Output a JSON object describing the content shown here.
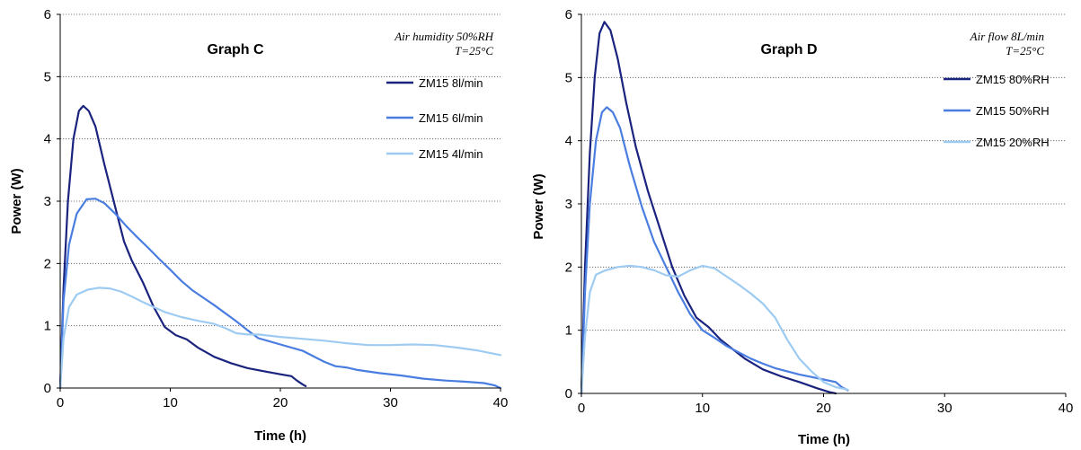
{
  "chart_data": [
    {
      "type": "line",
      "title": "Graph C",
      "xlabel": "Time (h)",
      "ylabel": "Power (W)",
      "xlim": [
        0,
        40
      ],
      "ylim": [
        0,
        6
      ],
      "xticks": [
        0,
        10,
        20,
        30,
        40
      ],
      "yticks": [
        0,
        1,
        2,
        3,
        4,
        5,
        6
      ],
      "grid": "horizontal dotted",
      "legend": "right",
      "annotations": [
        "Air humidity 50%RH",
        "T=25°C"
      ],
      "series": [
        {
          "name": "ZM15 8l/min",
          "color": "#1a237e",
          "points": [
            [
              0,
              0
            ],
            [
              0.3,
              1.6
            ],
            [
              0.7,
              3.0
            ],
            [
              1.2,
              4.0
            ],
            [
              1.7,
              4.45
            ],
            [
              2.1,
              4.53
            ],
            [
              2.6,
              4.45
            ],
            [
              3.2,
              4.2
            ],
            [
              4.0,
              3.6
            ],
            [
              5,
              2.9
            ],
            [
              5.8,
              2.35
            ],
            [
              6.5,
              2.05
            ],
            [
              7.5,
              1.7
            ],
            [
              8.5,
              1.3
            ],
            [
              9.5,
              0.98
            ],
            [
              10.5,
              0.85
            ],
            [
              11.5,
              0.78
            ],
            [
              12.5,
              0.65
            ],
            [
              14,
              0.5
            ],
            [
              15.5,
              0.4
            ],
            [
              17,
              0.32
            ],
            [
              18.5,
              0.27
            ],
            [
              20,
              0.22
            ],
            [
              21,
              0.19
            ],
            [
              21.5,
              0.12
            ],
            [
              22,
              0.06
            ],
            [
              22.3,
              0.03
            ]
          ]
        },
        {
          "name": "ZM15 6l/min",
          "color": "#4a7de0",
          "points": [
            [
              0,
              0
            ],
            [
              0.3,
              1.4
            ],
            [
              0.8,
              2.3
            ],
            [
              1.5,
              2.8
            ],
            [
              2.4,
              3.03
            ],
            [
              3.2,
              3.04
            ],
            [
              4,
              2.97
            ],
            [
              5,
              2.8
            ],
            [
              6,
              2.6
            ],
            [
              7,
              2.42
            ],
            [
              8,
              2.25
            ],
            [
              9,
              2.07
            ],
            [
              10,
              1.9
            ],
            [
              11,
              1.72
            ],
            [
              12,
              1.57
            ],
            [
              13,
              1.45
            ],
            [
              14,
              1.33
            ],
            [
              15,
              1.2
            ],
            [
              16,
              1.07
            ],
            [
              17,
              0.93
            ],
            [
              18,
              0.8
            ],
            [
              20,
              0.7
            ],
            [
              22,
              0.6
            ],
            [
              24,
              0.42
            ],
            [
              25,
              0.35
            ],
            [
              26,
              0.33
            ],
            [
              27,
              0.29
            ],
            [
              29,
              0.24
            ],
            [
              31,
              0.2
            ],
            [
              33,
              0.15
            ],
            [
              35,
              0.12
            ],
            [
              37,
              0.1
            ],
            [
              38.5,
              0.08
            ],
            [
              39.5,
              0.04
            ],
            [
              40,
              0
            ]
          ]
        },
        {
          "name": "ZM15 4l/min",
          "color": "#9ecbf2",
          "points": [
            [
              0,
              0
            ],
            [
              0.3,
              0.8
            ],
            [
              0.8,
              1.3
            ],
            [
              1.5,
              1.5
            ],
            [
              2.5,
              1.58
            ],
            [
              3.5,
              1.61
            ],
            [
              4.5,
              1.6
            ],
            [
              5.5,
              1.55
            ],
            [
              6.5,
              1.47
            ],
            [
              7.5,
              1.38
            ],
            [
              8.5,
              1.3
            ],
            [
              9.5,
              1.22
            ],
            [
              11,
              1.14
            ],
            [
              12.5,
              1.08
            ],
            [
              14,
              1.03
            ],
            [
              15,
              0.96
            ],
            [
              16,
              0.88
            ],
            [
              17,
              0.86
            ],
            [
              18,
              0.86
            ],
            [
              20,
              0.82
            ],
            [
              22,
              0.79
            ],
            [
              24,
              0.76
            ],
            [
              26,
              0.72
            ],
            [
              28,
              0.69
            ],
            [
              30,
              0.69
            ],
            [
              32,
              0.7
            ],
            [
              34,
              0.69
            ],
            [
              36,
              0.65
            ],
            [
              38,
              0.6
            ],
            [
              40,
              0.53
            ]
          ]
        }
      ]
    },
    {
      "type": "line",
      "title": "Graph D",
      "xlabel": "Time (h)",
      "ylabel": "Power (W)",
      "xlim": [
        0,
        40
      ],
      "ylim": [
        0,
        6
      ],
      "xticks": [
        0,
        10,
        20,
        30,
        40
      ],
      "yticks": [
        0,
        1,
        2,
        3,
        4,
        5,
        6
      ],
      "grid": "horizontal dotted",
      "legend": "right",
      "annotations": [
        "Air flow 8L/min",
        "T=25°C"
      ],
      "series": [
        {
          "name": "ZM15 80%RH",
          "color": "#1a237e",
          "points": [
            [
              0,
              0
            ],
            [
              0.3,
              2.0
            ],
            [
              0.7,
              3.8
            ],
            [
              1.1,
              5.0
            ],
            [
              1.5,
              5.7
            ],
            [
              1.9,
              5.88
            ],
            [
              2.4,
              5.75
            ],
            [
              3,
              5.3
            ],
            [
              3.7,
              4.6
            ],
            [
              4.5,
              3.9
            ],
            [
              5.5,
              3.2
            ],
            [
              6.5,
              2.6
            ],
            [
              7.5,
              2.0
            ],
            [
              8.5,
              1.55
            ],
            [
              9.5,
              1.2
            ],
            [
              10.5,
              1.05
            ],
            [
              11.5,
              0.85
            ],
            [
              12.5,
              0.7
            ],
            [
              13.5,
              0.55
            ],
            [
              15,
              0.38
            ],
            [
              16.5,
              0.27
            ],
            [
              18,
              0.18
            ],
            [
              19.5,
              0.08
            ],
            [
              20.5,
              0.02
            ],
            [
              21,
              0
            ]
          ]
        },
        {
          "name": "ZM15 50%RH",
          "color": "#4a7de0",
          "points": [
            [
              0,
              0
            ],
            [
              0.3,
              1.6
            ],
            [
              0.7,
              3.0
            ],
            [
              1.2,
              4.0
            ],
            [
              1.7,
              4.45
            ],
            [
              2.1,
              4.53
            ],
            [
              2.6,
              4.45
            ],
            [
              3.2,
              4.2
            ],
            [
              4,
              3.6
            ],
            [
              5,
              2.95
            ],
            [
              6,
              2.4
            ],
            [
              7,
              2.0
            ],
            [
              8,
              1.6
            ],
            [
              9,
              1.25
            ],
            [
              10,
              1.0
            ],
            [
              11,
              0.88
            ],
            [
              12,
              0.75
            ],
            [
              13,
              0.65
            ],
            [
              14,
              0.55
            ],
            [
              15,
              0.47
            ],
            [
              16,
              0.4
            ],
            [
              17,
              0.35
            ],
            [
              18,
              0.3
            ],
            [
              19,
              0.26
            ],
            [
              20,
              0.22
            ],
            [
              21,
              0.18
            ],
            [
              21.5,
              0.1
            ],
            [
              22,
              0.05
            ]
          ]
        },
        {
          "name": "ZM15 20%RH",
          "color": "#9ecbf2",
          "points": [
            [
              0,
              0
            ],
            [
              0.3,
              0.9
            ],
            [
              0.7,
              1.6
            ],
            [
              1.2,
              1.88
            ],
            [
              2,
              1.95
            ],
            [
              3,
              2.0
            ],
            [
              4,
              2.02
            ],
            [
              5,
              2.0
            ],
            [
              6,
              1.95
            ],
            [
              7,
              1.87
            ],
            [
              8,
              1.85
            ],
            [
              9,
              1.95
            ],
            [
              10,
              2.02
            ],
            [
              11,
              1.98
            ],
            [
              12,
              1.85
            ],
            [
              13,
              1.72
            ],
            [
              14,
              1.58
            ],
            [
              15,
              1.42
            ],
            [
              16,
              1.2
            ],
            [
              17,
              0.85
            ],
            [
              18,
              0.55
            ],
            [
              19,
              0.35
            ],
            [
              20,
              0.18
            ],
            [
              21,
              0.1
            ],
            [
              22,
              0.06
            ]
          ]
        }
      ]
    }
  ]
}
